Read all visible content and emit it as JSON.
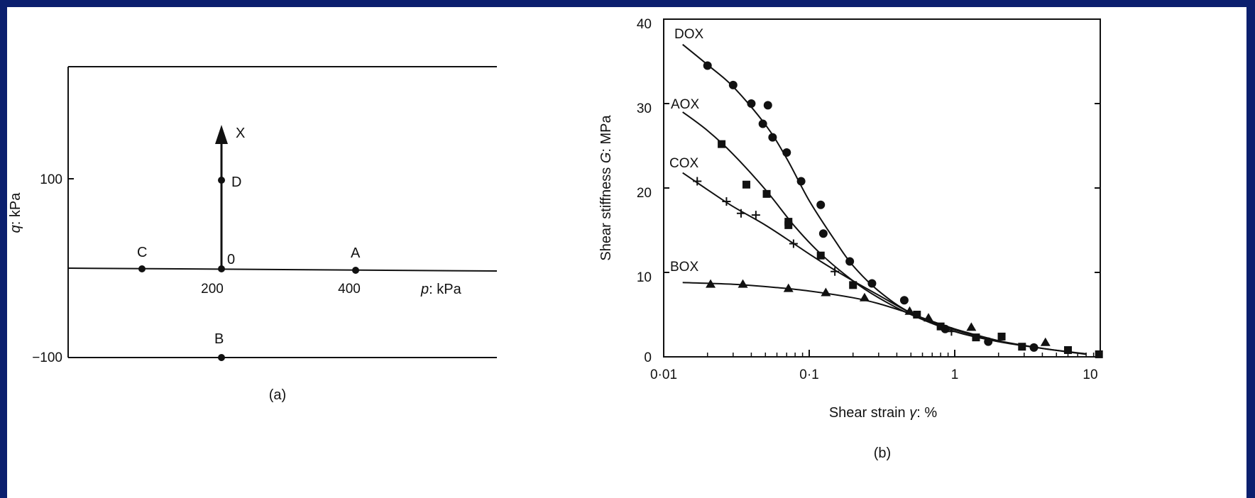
{
  "frame_color": "#0b1f6e",
  "panel_a": {
    "caption": "(a)",
    "ylabel_italic": "q",
    "ylabel_rest": ": kPa",
    "xlabel_italic": "p",
    "xlabel_rest": ": kPa",
    "ytick_100": "100",
    "ytick_m100": "−100",
    "xtick_200": "200",
    "xtick_400": "400",
    "points": {
      "A": "A",
      "B": "B",
      "C": "C",
      "D": "D",
      "O": "0",
      "X": "X"
    }
  },
  "chart_data": {
    "type": "scatter",
    "caption": "(b)",
    "title": "",
    "xlabel": "Shear strain γ: %",
    "xlabel_plain": "Shear strain ",
    "xlabel_symbol": "γ",
    "xlabel_unit": ": %",
    "ylabel": "Shear stiffness G: MPa",
    "ylabel_plain": "Shear stiffness ",
    "ylabel_symbol": "G",
    "ylabel_unit": ": MPa",
    "xscale": "log",
    "xlim": [
      0.01,
      10
    ],
    "ylim": [
      0,
      40
    ],
    "xtick_labels": [
      "0·01",
      "0·1",
      "1",
      "10"
    ],
    "ytick_labels": [
      "0",
      "10",
      "20",
      "30",
      "40"
    ],
    "series": [
      {
        "name": "DOX",
        "marker": "circle",
        "points": [
          [
            0.02,
            34.5
          ],
          [
            0.03,
            32.2
          ],
          [
            0.04,
            30
          ],
          [
            0.048,
            27.6
          ],
          [
            0.052,
            29.8
          ],
          [
            0.056,
            26
          ],
          [
            0.07,
            24.2
          ],
          [
            0.088,
            20.8
          ],
          [
            0.12,
            18
          ],
          [
            0.125,
            14.6
          ],
          [
            0.19,
            11.3
          ],
          [
            0.27,
            8.7
          ],
          [
            0.45,
            6.7
          ],
          [
            0.86,
            3.3
          ],
          [
            1.7,
            1.8
          ],
          [
            3.5,
            1.1
          ]
        ],
        "curve": [
          [
            0.0135,
            37
          ],
          [
            0.02,
            34.6
          ],
          [
            0.03,
            32
          ],
          [
            0.05,
            27.5
          ],
          [
            0.07,
            23.5
          ],
          [
            0.1,
            18.5
          ],
          [
            0.15,
            13.8
          ],
          [
            0.2,
            10.8
          ],
          [
            0.3,
            7.8
          ],
          [
            0.5,
            5.2
          ],
          [
            1,
            3.2
          ],
          [
            2,
            1.9
          ],
          [
            4,
            1
          ],
          [
            8,
            0.3
          ]
        ]
      },
      {
        "name": "AOX",
        "marker": "square",
        "points": [
          [
            0.025,
            25.2
          ],
          [
            0.037,
            20.4
          ],
          [
            0.051,
            19.3
          ],
          [
            0.072,
            16
          ],
          [
            0.072,
            15.6
          ],
          [
            0.12,
            12
          ],
          [
            0.2,
            8.5
          ],
          [
            0.55,
            5
          ],
          [
            0.8,
            3.6
          ],
          [
            1.4,
            2.3
          ],
          [
            2.1,
            2.4
          ],
          [
            2.9,
            1.2
          ],
          [
            6,
            0.8
          ],
          [
            9.8,
            0.3
          ]
        ],
        "curve": [
          [
            0.0135,
            29
          ],
          [
            0.02,
            26.8
          ],
          [
            0.03,
            24
          ],
          [
            0.05,
            19.8
          ],
          [
            0.08,
            15.4
          ],
          [
            0.12,
            12.2
          ],
          [
            0.2,
            9
          ],
          [
            0.3,
            7
          ],
          [
            0.5,
            5
          ],
          [
            1,
            3
          ],
          [
            2,
            1.8
          ],
          [
            4,
            1
          ],
          [
            8,
            0.35
          ]
        ]
      },
      {
        "name": "COX",
        "marker": "plus",
        "points": [
          [
            0.017,
            20.8
          ],
          [
            0.027,
            18.4
          ],
          [
            0.034,
            17
          ],
          [
            0.043,
            16.8
          ],
          [
            0.078,
            13.4
          ],
          [
            0.15,
            10.1
          ],
          [
            0.95,
            3
          ]
        ],
        "curve": [
          [
            0.0135,
            21.8
          ],
          [
            0.02,
            19.8
          ],
          [
            0.03,
            17.8
          ],
          [
            0.05,
            15.6
          ],
          [
            0.08,
            13.3
          ],
          [
            0.12,
            11.3
          ],
          [
            0.2,
            9
          ],
          [
            0.3,
            7.3
          ],
          [
            0.5,
            5.2
          ],
          [
            1,
            3
          ],
          [
            2,
            1.8
          ]
        ]
      },
      {
        "name": "BOX",
        "marker": "triangle",
        "points": [
          [
            0.021,
            8.6
          ],
          [
            0.035,
            8.6
          ],
          [
            0.072,
            8.1
          ],
          [
            0.13,
            7.6
          ],
          [
            0.24,
            7
          ],
          [
            0.49,
            5.4
          ],
          [
            0.66,
            4.6
          ],
          [
            1.3,
            3.5
          ],
          [
            4.2,
            1.7
          ]
        ],
        "curve": [
          [
            0.0135,
            8.8
          ],
          [
            0.03,
            8.6
          ],
          [
            0.06,
            8.2
          ],
          [
            0.1,
            7.8
          ],
          [
            0.2,
            7
          ],
          [
            0.3,
            6.3
          ],
          [
            0.5,
            5.1
          ],
          [
            1,
            3.3
          ],
          [
            2,
            1.9
          ]
        ]
      }
    ]
  }
}
